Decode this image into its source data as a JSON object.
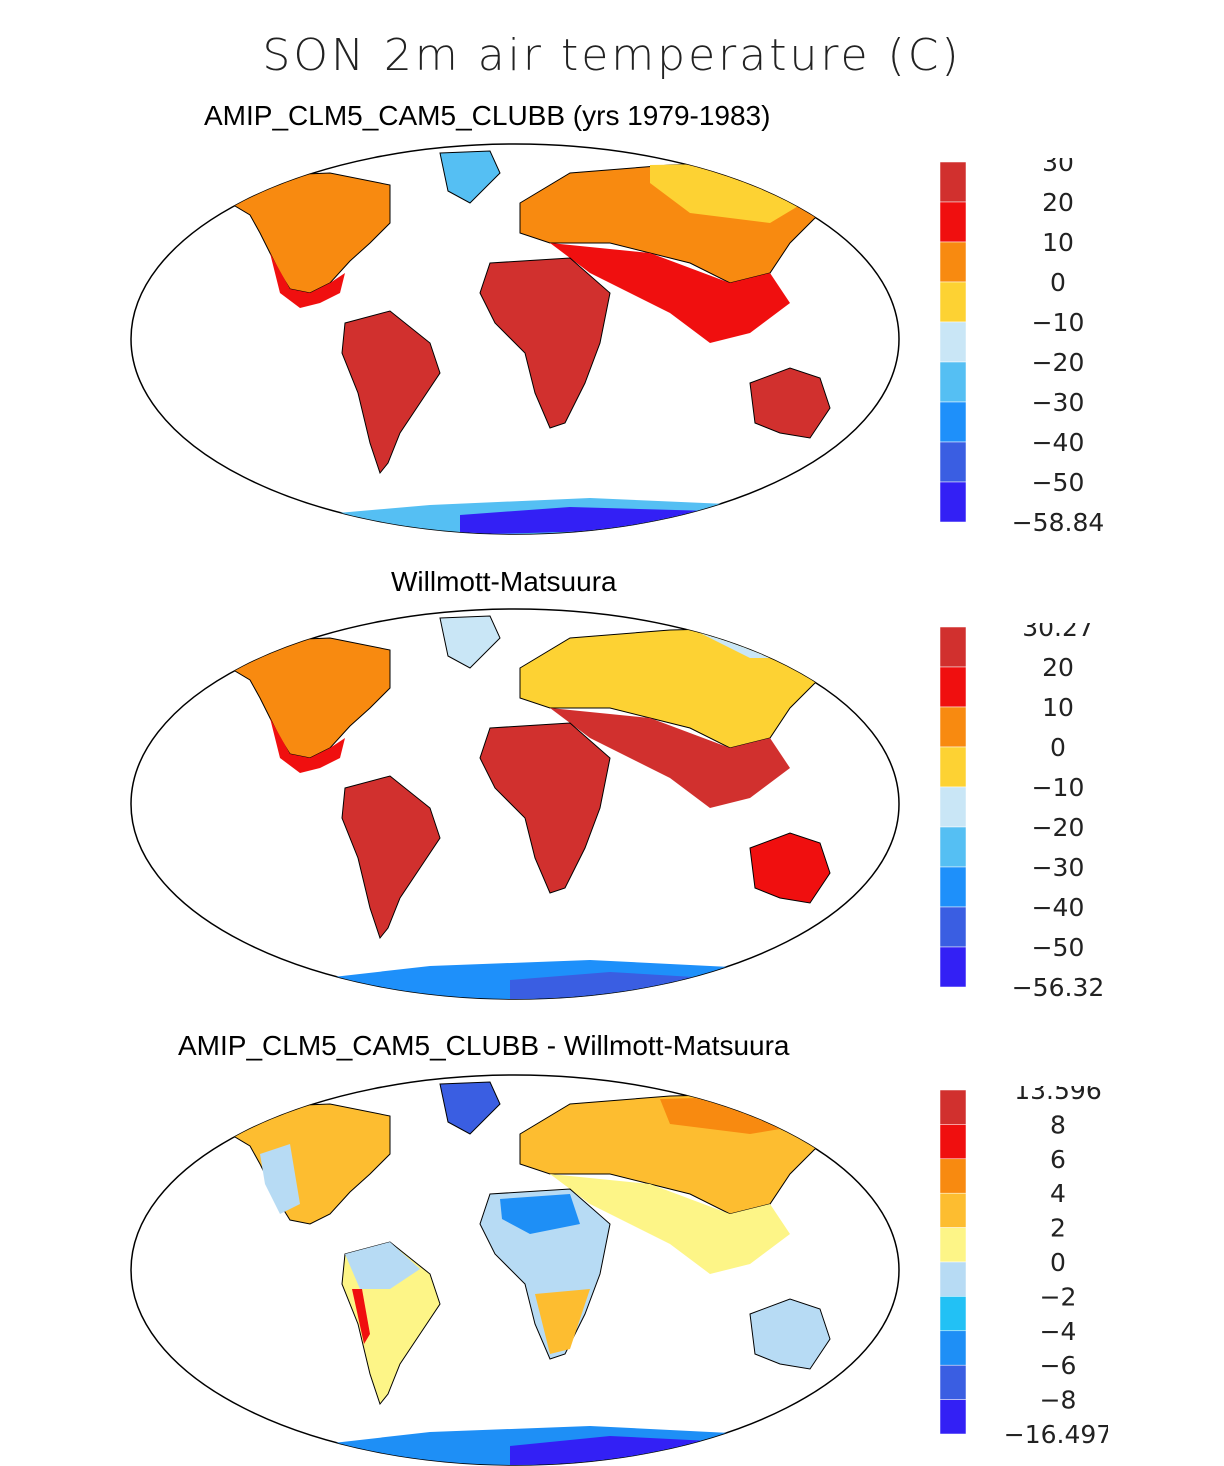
{
  "figure": {
    "title": "SON 2m air temperature (C)"
  },
  "panels": [
    {
      "title": "AMIP_CLM5_CAM5_CLUBB (yrs 1979-1983)",
      "colorbar": {
        "labels": [
          "30",
          "20",
          "10",
          "0",
          "−10",
          "−20",
          "−30",
          "−40",
          "−50",
          "−58.84"
        ],
        "colors": [
          "#d1302e",
          "#f00f0f",
          "#f88a10",
          "#fdd233",
          "#c9e6f6",
          "#55bff3",
          "#1e90fa",
          "#3a5ee2",
          "#3320f5"
        ]
      }
    },
    {
      "title": "Willmott-Matsuura",
      "colorbar": {
        "labels": [
          "30.27",
          "20",
          "10",
          "0",
          "−10",
          "−20",
          "−30",
          "−40",
          "−50",
          "−56.32"
        ],
        "colors": [
          "#d1302e",
          "#f00f0f",
          "#f88a10",
          "#fdd233",
          "#c9e6f6",
          "#55bff3",
          "#1e90fa",
          "#3a5ee2",
          "#3320f5"
        ]
      }
    },
    {
      "title": "AMIP_CLM5_CAM5_CLUBB - Willmott-Matsuura",
      "colorbar": {
        "labels": [
          "13.596",
          "8",
          "6",
          "4",
          "2",
          "0",
          "−2",
          "−4",
          "−6",
          "−8",
          "−16.497"
        ],
        "colors": [
          "#d1302e",
          "#f00f0f",
          "#f88a10",
          "#fdbd30",
          "#fdf587",
          "#b7dbf4",
          "#22c1f5",
          "#1e8ff6",
          "#3a5ee2",
          "#3320f5"
        ]
      }
    }
  ]
}
